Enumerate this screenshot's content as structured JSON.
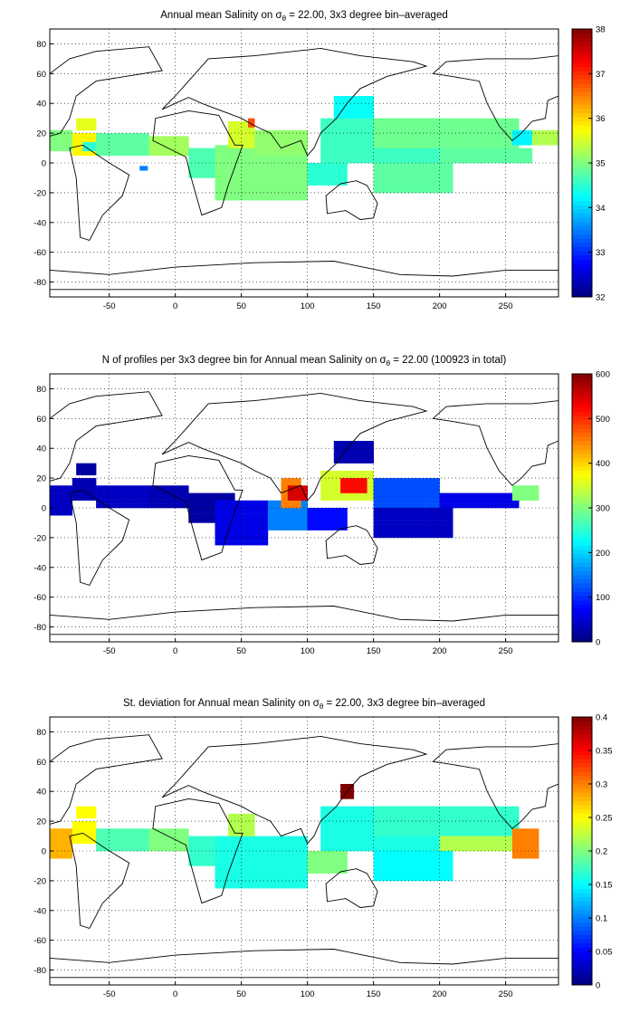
{
  "chart_data": [
    {
      "type": "heatmap",
      "title_prefix": "Annual mean Salinity on ",
      "title_symbol": "σ",
      "title_subscript": "θ",
      "title_suffix": " = 22.00, 3x3 degree bin–averaged",
      "xlim": [
        -95,
        290
      ],
      "ylim": [
        -90,
        90
      ],
      "xticks": [
        -50,
        0,
        50,
        100,
        150,
        200,
        250
      ],
      "yticks": [
        -80,
        -60,
        -40,
        -20,
        0,
        20,
        40,
        60,
        80
      ],
      "grid": true,
      "colorbar": {
        "min": 32,
        "max": 38,
        "ticks": [
          32,
          33,
          34,
          35,
          36,
          37,
          38
        ]
      },
      "bins": [
        [
          -95,
          -78,
          8,
          22,
          35.0
        ],
        [
          -78,
          -60,
          5,
          20,
          35.8
        ],
        [
          -75,
          -60,
          22,
          30,
          35.6
        ],
        [
          -60,
          -20,
          5,
          20,
          34.8
        ],
        [
          -20,
          10,
          5,
          18,
          35.2
        ],
        [
          10,
          45,
          -10,
          10,
          34.7
        ],
        [
          30,
          100,
          -25,
          12,
          35.0
        ],
        [
          40,
          60,
          10,
          28,
          35.5
        ],
        [
          55,
          60,
          24,
          30,
          36.8
        ],
        [
          60,
          100,
          5,
          22,
          35.1
        ],
        [
          100,
          130,
          -15,
          0,
          34.5
        ],
        [
          110,
          200,
          0,
          30,
          34.6
        ],
        [
          120,
          150,
          30,
          45,
          34.3
        ],
        [
          150,
          260,
          10,
          30,
          34.9
        ],
        [
          200,
          270,
          0,
          10,
          34.8
        ],
        [
          150,
          210,
          -20,
          0,
          34.8
        ],
        [
          255,
          270,
          12,
          22,
          34.2
        ],
        [
          270,
          290,
          12,
          22,
          35.3
        ],
        [
          -70,
          -60,
          8,
          14,
          34.5
        ],
        [
          -27,
          -21,
          -5,
          -2,
          33.5
        ]
      ]
    },
    {
      "type": "heatmap",
      "title_prefix": "N of profiles per 3x3 degree bin for Annual mean Salinity on ",
      "title_symbol": "σ",
      "title_subscript": "θ",
      "title_suffix": " = 22.00 (100923 in total)",
      "xlim": [
        -95,
        290
      ],
      "ylim": [
        -90,
        90
      ],
      "xticks": [
        -50,
        0,
        50,
        100,
        150,
        200,
        250
      ],
      "yticks": [
        -80,
        -60,
        -40,
        -20,
        0,
        20,
        40,
        60,
        80
      ],
      "grid": true,
      "colorbar": {
        "min": 0,
        "max": 600,
        "ticks": [
          0,
          100,
          200,
          300,
          400,
          500,
          600
        ]
      },
      "bins": [
        [
          -95,
          -78,
          -5,
          15,
          40
        ],
        [
          -78,
          -60,
          5,
          20,
          30
        ],
        [
          -60,
          -20,
          0,
          15,
          40
        ],
        [
          -20,
          10,
          0,
          15,
          30
        ],
        [
          10,
          45,
          -10,
          10,
          20
        ],
        [
          30,
          70,
          -25,
          5,
          60
        ],
        [
          70,
          100,
          -15,
          5,
          150
        ],
        [
          80,
          95,
          0,
          20,
          450
        ],
        [
          85,
          100,
          5,
          15,
          550
        ],
        [
          110,
          150,
          5,
          25,
          350
        ],
        [
          125,
          145,
          10,
          20,
          520
        ],
        [
          150,
          200,
          0,
          20,
          120
        ],
        [
          100,
          130,
          -15,
          0,
          80
        ],
        [
          150,
          210,
          -20,
          0,
          40
        ],
        [
          200,
          260,
          0,
          10,
          60
        ],
        [
          255,
          275,
          5,
          15,
          300
        ],
        [
          -75,
          -60,
          22,
          30,
          20
        ],
        [
          120,
          150,
          30,
          45,
          30
        ]
      ]
    },
    {
      "type": "heatmap",
      "title_prefix": "St. deviation for Annual mean Salinity on ",
      "title_symbol": "σ",
      "title_subscript": "θ",
      "title_suffix": " = 22.00, 3x3 degree bin–averaged",
      "xlim": [
        -95,
        290
      ],
      "ylim": [
        -90,
        90
      ],
      "xticks": [
        -50,
        0,
        50,
        100,
        150,
        200,
        250
      ],
      "yticks": [
        -80,
        -60,
        -40,
        -20,
        0,
        20,
        40,
        60,
        80
      ],
      "grid": true,
      "colorbar": {
        "min": 0,
        "max": 0.4,
        "ticks": [
          0,
          0.05,
          0.1,
          0.15,
          0.2,
          0.25,
          0.3,
          0.35,
          0.4
        ]
      },
      "bins": [
        [
          -95,
          -78,
          -5,
          15,
          0.28
        ],
        [
          -78,
          -60,
          5,
          20,
          0.25
        ],
        [
          -60,
          -20,
          0,
          15,
          0.18
        ],
        [
          -20,
          10,
          0,
          15,
          0.2
        ],
        [
          10,
          45,
          -10,
          10,
          0.17
        ],
        [
          30,
          100,
          -25,
          10,
          0.16
        ],
        [
          40,
          60,
          10,
          25,
          0.22
        ],
        [
          110,
          200,
          0,
          30,
          0.16
        ],
        [
          125,
          135,
          35,
          45,
          0.4
        ],
        [
          150,
          260,
          10,
          30,
          0.17
        ],
        [
          200,
          270,
          0,
          10,
          0.22
        ],
        [
          255,
          275,
          -5,
          15,
          0.3
        ],
        [
          100,
          130,
          -15,
          0,
          0.2
        ],
        [
          150,
          210,
          -20,
          0,
          0.15
        ],
        [
          -75,
          -60,
          22,
          30,
          0.25
        ]
      ]
    }
  ]
}
